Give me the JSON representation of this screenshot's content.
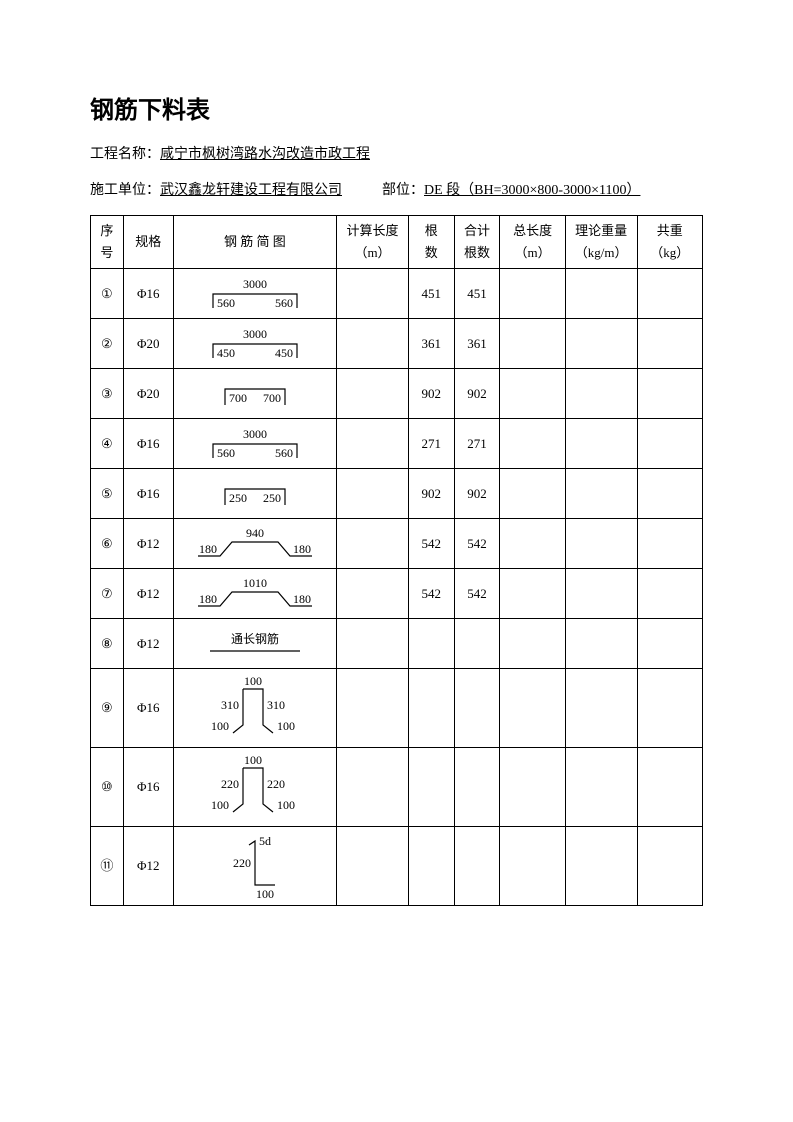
{
  "title": "钢筋下料表",
  "meta": {
    "project_label": "工程名称：",
    "project_name": "咸宁市枫树湾路水沟改造市政工程",
    "unit_label": "施工单位：",
    "unit_name": "武汉鑫龙轩建设工程有限公司",
    "section_label": "部位：",
    "section_name": "DE 段（BH=3000×800-3000×1100）"
  },
  "columns": {
    "seq": [
      "序",
      "号"
    ],
    "spec": "规格",
    "diag": "钢 筋 简 图",
    "calc": [
      "计算长度",
      "（m）"
    ],
    "cnt": [
      "根",
      "数"
    ],
    "sum": [
      "合计",
      "根数"
    ],
    "len": [
      "总长度",
      "（m）"
    ],
    "wgt": [
      "理论重量",
      "（kg/m）"
    ],
    "tot": [
      "共重",
      "（kg）"
    ]
  },
  "rows": [
    {
      "seq": "①",
      "spec": "Φ16",
      "diag": {
        "type": "ubar",
        "top": "3000",
        "left": "560",
        "right": "560"
      },
      "calc": "",
      "cnt": "451",
      "sum": "451",
      "len": "",
      "wgt": "",
      "tot": ""
    },
    {
      "seq": "②",
      "spec": "Φ20",
      "diag": {
        "type": "ubar",
        "top": "3000",
        "left": "450",
        "right": "450"
      },
      "calc": "",
      "cnt": "361",
      "sum": "361",
      "len": "",
      "wgt": "",
      "tot": ""
    },
    {
      "seq": "③",
      "spec": "Φ20",
      "diag": {
        "type": "ushort",
        "left": "700",
        "right": "700"
      },
      "calc": "",
      "cnt": "902",
      "sum": "902",
      "len": "",
      "wgt": "",
      "tot": ""
    },
    {
      "seq": "④",
      "spec": "Φ16",
      "diag": {
        "type": "ubar",
        "top": "3000",
        "left": "560",
        "right": "560"
      },
      "calc": "",
      "cnt": "271",
      "sum": "271",
      "len": "",
      "wgt": "",
      "tot": ""
    },
    {
      "seq": "⑤",
      "spec": "Φ16",
      "diag": {
        "type": "ushort",
        "left": "250",
        "right": "250"
      },
      "calc": "",
      "cnt": "902",
      "sum": "902",
      "len": "",
      "wgt": "",
      "tot": ""
    },
    {
      "seq": "⑥",
      "spec": "Φ12",
      "diag": {
        "type": "trap",
        "top": "940",
        "left": "180",
        "right": "180"
      },
      "calc": "",
      "cnt": "542",
      "sum": "542",
      "len": "",
      "wgt": "",
      "tot": ""
    },
    {
      "seq": "⑦",
      "spec": "Φ12",
      "diag": {
        "type": "trap",
        "top": "1010",
        "left": "180",
        "right": "180"
      },
      "calc": "",
      "cnt": "542",
      "sum": "542",
      "len": "",
      "wgt": "",
      "tot": ""
    },
    {
      "seq": "⑧",
      "spec": "Φ12",
      "diag": {
        "type": "line",
        "label": "通长钢筋"
      },
      "calc": "",
      "cnt": "",
      "sum": "",
      "len": "",
      "wgt": "",
      "tot": ""
    },
    {
      "seq": "⑨",
      "spec": "Φ16",
      "diag": {
        "type": "stirrup",
        "top": "100",
        "midL": "310",
        "midR": "310",
        "botL": "100",
        "botR": "100"
      },
      "calc": "",
      "cnt": "",
      "sum": "",
      "len": "",
      "wgt": "",
      "tot": ""
    },
    {
      "seq": "⑩",
      "spec": "Φ16",
      "diag": {
        "type": "stirrup",
        "top": "100",
        "midL": "220",
        "midR": "220",
        "botL": "100",
        "botR": "100"
      },
      "calc": "",
      "cnt": "",
      "sum": "",
      "len": "",
      "wgt": "",
      "tot": ""
    },
    {
      "seq": "⑪",
      "spec": "Φ12",
      "diag": {
        "type": "hook",
        "top": "5d",
        "left": "220",
        "bot": "100"
      },
      "calc": "",
      "cnt": "",
      "sum": "",
      "len": "",
      "wgt": "",
      "tot": ""
    }
  ],
  "style": {
    "page_bg": "#ffffff",
    "text_color": "#000000",
    "border_color": "#000000",
    "title_fontsize": 24,
    "body_fontsize": 14,
    "table_fontsize": 13,
    "svg_fontsize": 12,
    "stroke_width": 1.2
  }
}
